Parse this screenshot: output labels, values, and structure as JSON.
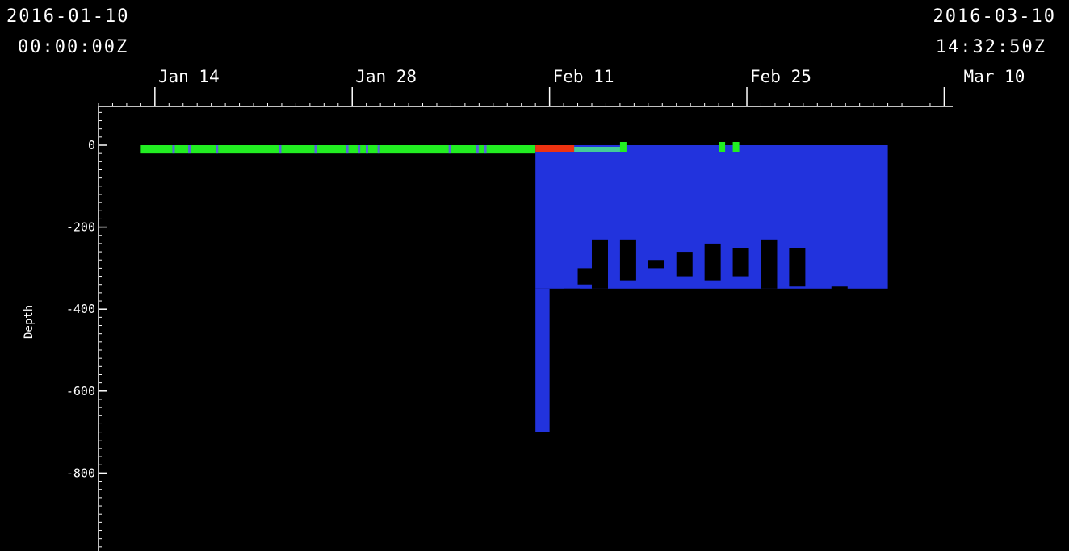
{
  "header": {
    "start_date": "2016-01-10",
    "start_time": "00:00:00Z",
    "end_date": "2016-03-10",
    "end_time": "14:32:50Z"
  },
  "chart_data": {
    "type": "heatmap",
    "ylabel": "Depth",
    "x_range": [
      "2016-01-10",
      "2016-03-10"
    ],
    "x_ticks": [
      "Jan 14",
      "Jan 28",
      "Feb 11",
      "Feb 25",
      "Mar 10"
    ],
    "ylim": [
      -1000,
      100
    ],
    "y_ticks": [
      0,
      -200,
      -400,
      -600,
      -800
    ],
    "colors": {
      "background": "#000000",
      "surface_band": "#22ee22",
      "deep_fill": "#2233dd",
      "warm_edge": "#ee3311"
    },
    "coverage": [
      {
        "from": "2016-01-13",
        "to": "2016-02-10",
        "depth_top": 0,
        "depth_bottom": -20,
        "color": "surface_band"
      },
      {
        "from": "2016-02-10",
        "to": "2016-03-06",
        "depth_top": 0,
        "depth_bottom": -350,
        "color": "deep_fill"
      },
      {
        "from": "2016-02-10",
        "to": "2016-02-11",
        "depth_top": -350,
        "depth_bottom": -700,
        "color": "deep_fill"
      }
    ]
  }
}
